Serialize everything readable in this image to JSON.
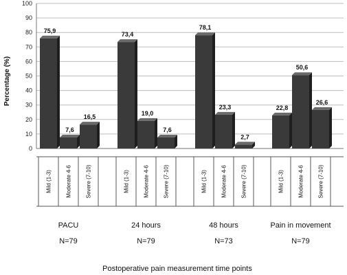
{
  "chart_data": {
    "type": "bar",
    "ylabel": "Percentage (%)",
    "xlabel": "Postoperative pain measurement time points",
    "ylim": [
      0,
      100
    ],
    "yticks": [
      0,
      10,
      20,
      30,
      40,
      50,
      60,
      70,
      80,
      90,
      100
    ],
    "grid": true,
    "subcategories": [
      "Mild (1-3)",
      "Moderate 4-6",
      "Severe (7-10)"
    ],
    "groups": [
      {
        "label": "PACU",
        "n": "N=79",
        "values": [
          75.9,
          7.6,
          16.5
        ],
        "value_labels": [
          "75,9",
          "7,6",
          "16,5"
        ]
      },
      {
        "label": "24 hours",
        "n": "N=79",
        "values": [
          73.4,
          19.0,
          7.6
        ],
        "value_labels": [
          "73,4",
          "19,0",
          "7,6"
        ]
      },
      {
        "label": "48 hours",
        "n": "N=73",
        "values": [
          78.1,
          23.3,
          2.7
        ],
        "value_labels": [
          "78,1",
          "23,3",
          "2,7"
        ]
      },
      {
        "label": "Pain in movement",
        "n": "N=79",
        "values": [
          22.8,
          50.6,
          26.6
        ],
        "value_labels": [
          "22,8",
          "50,6",
          "26,6"
        ]
      }
    ],
    "colors": {
      "bar_front": "#3a3a3a",
      "bar_top": "#6a6a6a",
      "bar_side": "#1e1e1e",
      "grid": "#bdbdbd"
    }
  }
}
